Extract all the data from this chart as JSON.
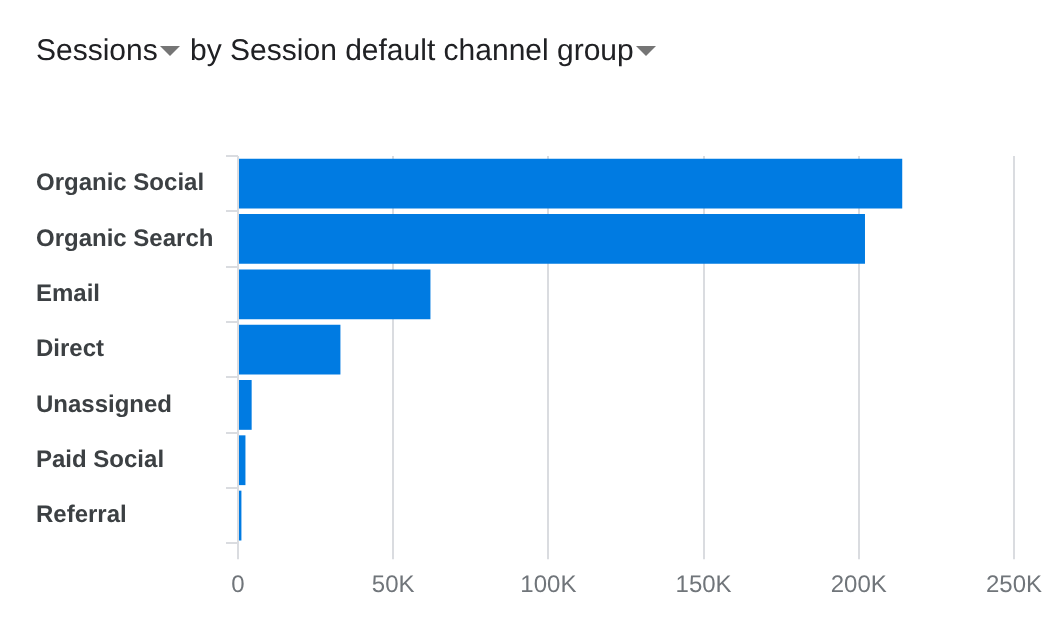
{
  "chart_data": {
    "type": "bar",
    "orientation": "horizontal",
    "title": "Sessions by Session default channel group",
    "categories": [
      "Organic Social",
      "Organic Search",
      "Email",
      "Direct",
      "Unassigned",
      "Paid Social",
      "Referral"
    ],
    "values": [
      214000,
      202000,
      62000,
      33000,
      4400,
      2400,
      1100
    ],
    "color": "#007be2",
    "xlim": [
      0,
      250000
    ],
    "xticks": [
      0,
      {
        "value": 50000,
        "label": "50K"
      },
      {
        "value": 100000,
        "label": "100K"
      },
      {
        "value": 150000,
        "label": "150K"
      },
      {
        "value": 200000,
        "label": "200K"
      },
      {
        "value": 250000,
        "label": "250K"
      }
    ],
    "grid": "x",
    "legend": false
  }
}
